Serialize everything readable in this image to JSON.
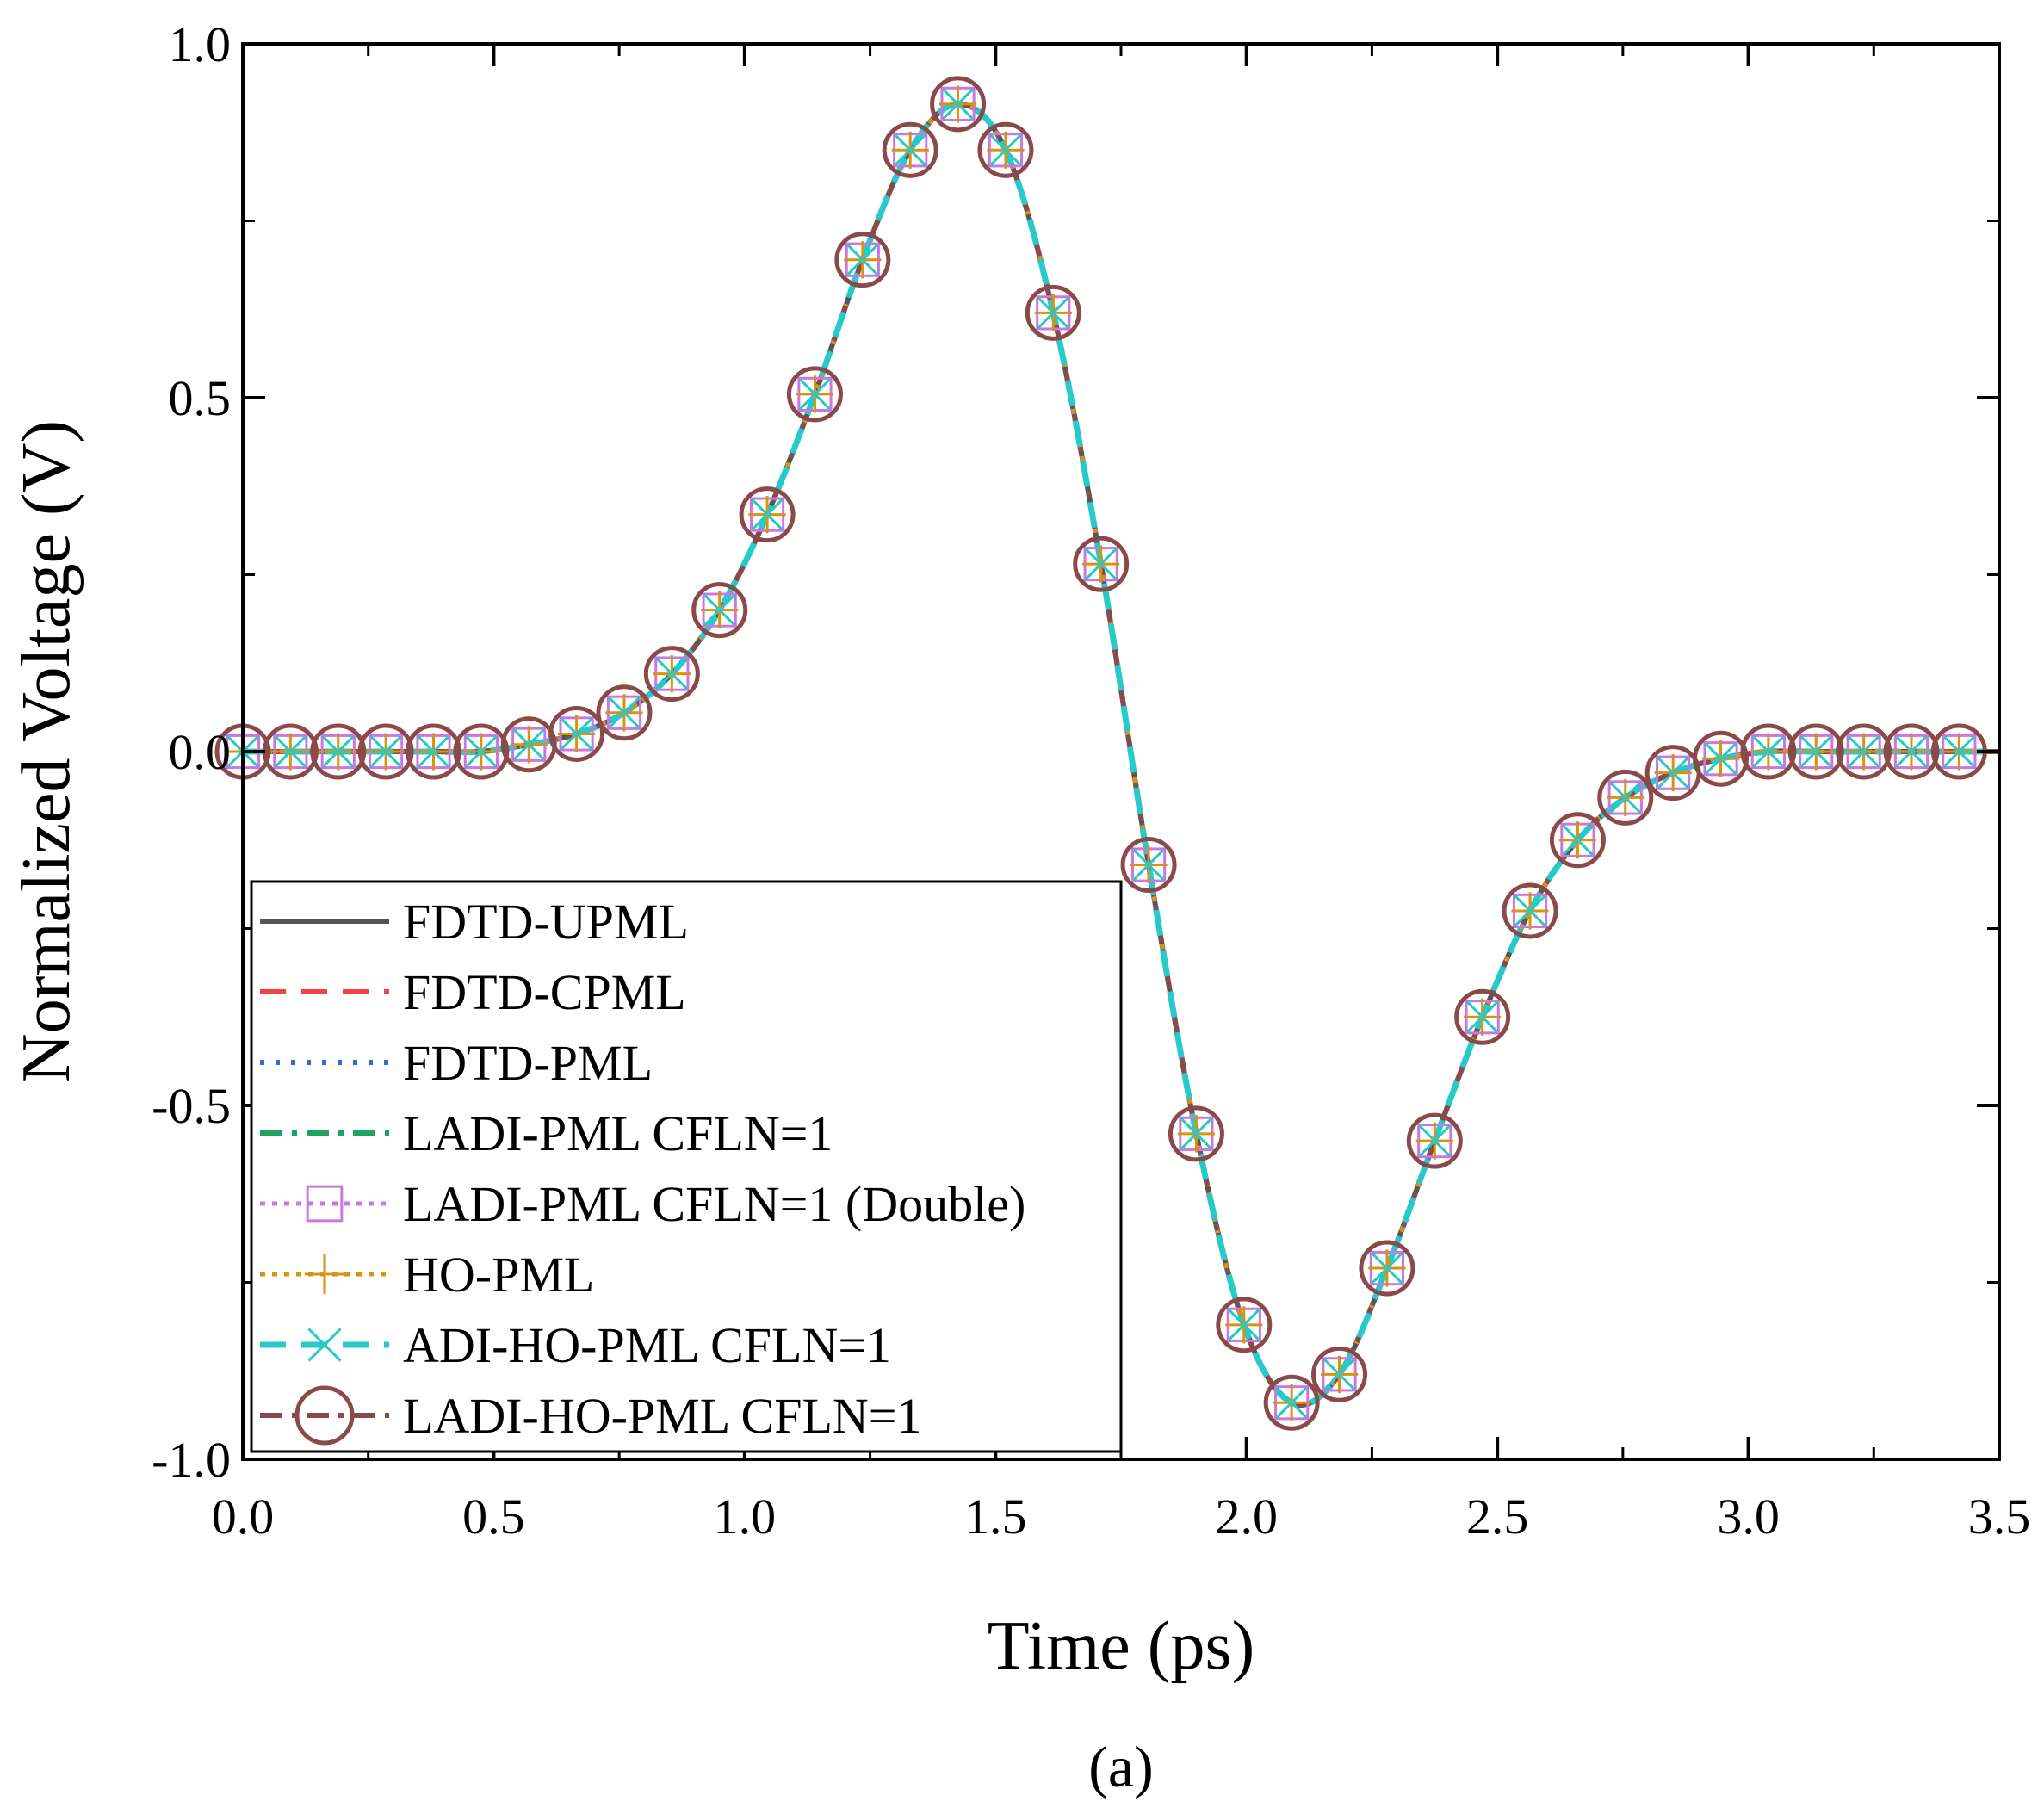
{
  "panel_label": "(a)",
  "chart_data": {
    "type": "line",
    "title": "",
    "xlabel": "Time (ps)",
    "ylabel": "Normalized Voltage (V)",
    "xlim": [
      0.0,
      3.5
    ],
    "ylim": [
      -1.0,
      1.0
    ],
    "xticks": [
      0.0,
      0.5,
      1.0,
      1.5,
      2.0,
      2.5,
      3.0,
      3.5
    ],
    "xtick_labels": [
      "0.0",
      "0.5",
      "1.0",
      "1.5",
      "2.0",
      "2.5",
      "3.0",
      "3.5"
    ],
    "yticks": [
      -1.0,
      -0.5,
      0.0,
      0.5,
      1.0
    ],
    "ytick_labels": [
      "-1.0",
      "-0.5",
      "0.0",
      "0.5",
      "1.0"
    ],
    "grid": false,
    "legend_position": "bottom-left",
    "x": [
      0.0,
      0.095,
      0.19,
      0.285,
      0.38,
      0.475,
      0.57,
      0.665,
      0.76,
      0.855,
      0.95,
      1.045,
      1.14,
      1.235,
      1.33,
      1.425,
      1.52,
      1.615,
      1.71,
      1.805,
      1.9,
      1.995,
      2.09,
      2.185,
      2.28,
      2.375,
      2.47,
      2.565,
      2.66,
      2.755,
      2.85,
      2.945,
      3.04,
      3.135,
      3.23,
      3.325,
      3.42
    ],
    "y": [
      0.0,
      0.0,
      0.0,
      0.0,
      0.0,
      0.0,
      0.01,
      0.025,
      0.055,
      0.11,
      0.2,
      0.335,
      0.505,
      0.695,
      0.85,
      0.915,
      0.85,
      0.62,
      0.265,
      -0.16,
      -0.54,
      -0.81,
      -0.92,
      -0.88,
      -0.73,
      -0.55,
      -0.375,
      -0.225,
      -0.125,
      -0.065,
      -0.03,
      -0.01,
      0.0,
      0.0,
      0.0,
      0.0,
      0.0
    ],
    "series": [
      {
        "name": "FDTD-UPML",
        "color": "#555555",
        "line": "solid",
        "marker": "none"
      },
      {
        "name": "FDTD-CPML",
        "color": "#f44242",
        "line": "dash",
        "marker": "none"
      },
      {
        "name": "FDTD-PML",
        "color": "#2a6fd6",
        "line": "dot",
        "marker": "none"
      },
      {
        "name": "LADI-PML CFLN=1",
        "color": "#1ea363",
        "line": "dashdot",
        "marker": "none"
      },
      {
        "name": "LADI-PML CFLN=1 (Double)",
        "color": "#cc77e0",
        "line": "shortdot",
        "marker": "square"
      },
      {
        "name": "HO-PML",
        "color": "#d99211",
        "line": "shortdot",
        "marker": "plus"
      },
      {
        "name": "ADI-HO-PML CFLN=1",
        "color": "#28c9c9",
        "line": "dash",
        "marker": "x"
      },
      {
        "name": "LADI-HO-PML CFLN=1",
        "color": "#8b4a4a",
        "line": "dashdot",
        "marker": "circle"
      }
    ]
  }
}
